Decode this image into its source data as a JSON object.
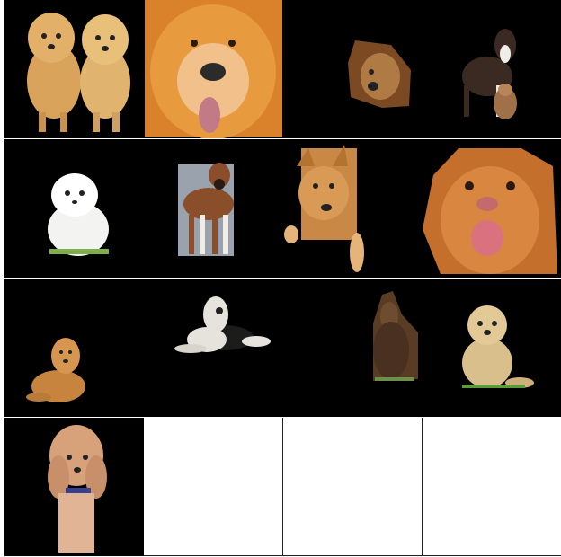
{
  "grid": {
    "rows": 4,
    "cols": 4,
    "background_colors": {
      "filled": "#000000",
      "empty": "#ffffff"
    },
    "cells": [
      {
        "id": "r0c0",
        "subject": "two-pomeranians",
        "color": "#d9a35c"
      },
      {
        "id": "r0c1",
        "subject": "chow-chow-closeup",
        "color": "#c9701f"
      },
      {
        "id": "r0c2",
        "subject": "small-brown-dog",
        "color": "#7b4a22"
      },
      {
        "id": "r0c3",
        "subject": "border-collie-with-puppy",
        "color": "#3b2a22"
      },
      {
        "id": "r1c0",
        "subject": "white-fluffy-puppy",
        "color": "#f3f3f1"
      },
      {
        "id": "r1c1",
        "subject": "boxer-dog",
        "color": "#8a4e2a"
      },
      {
        "id": "r1c2",
        "subject": "tan-shepherd-mix",
        "color": "#c98845"
      },
      {
        "id": "r1c3",
        "subject": "duck-tolling-retriever-face",
        "color": "#c56f2c"
      },
      {
        "id": "r2c0",
        "subject": "golden-puppy-lying",
        "color": "#c6843f"
      },
      {
        "id": "r2c1",
        "subject": "sheepdog-lying",
        "color": "#e6e3dc"
      },
      {
        "id": "r2c2",
        "subject": "afghan-hound",
        "color": "#5a3c24"
      },
      {
        "id": "r2c3",
        "subject": "golden-retriever-puppy",
        "color": "#d9bf8c"
      },
      {
        "id": "r3c0",
        "subject": "cavapoo-with-collar",
        "color": "#d7a27a"
      },
      {
        "id": "r3c1",
        "subject": "empty",
        "color": "#ffffff"
      },
      {
        "id": "r3c2",
        "subject": "empty",
        "color": "#ffffff"
      },
      {
        "id": "r3c3",
        "subject": "empty",
        "color": "#ffffff"
      }
    ]
  }
}
